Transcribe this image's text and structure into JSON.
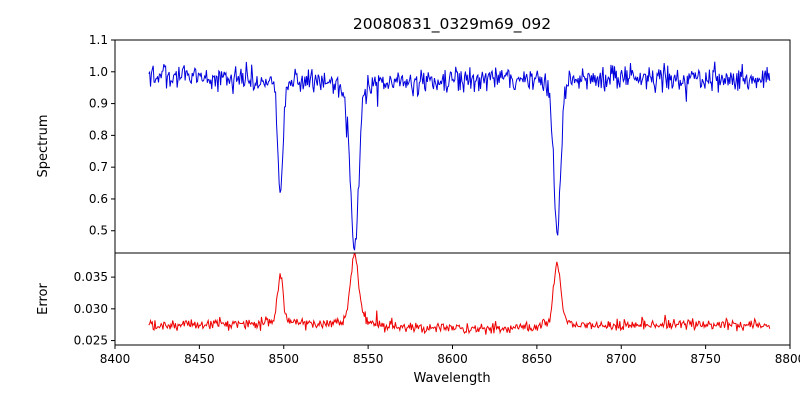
{
  "figure": {
    "background": "#ffffff",
    "axis_color": "#000000"
  },
  "chart_data": {
    "type": "line",
    "title": "20080831_0329m69_092",
    "xlabel": "Wavelength",
    "xlim": [
      8400,
      8800
    ],
    "xticks": [
      8400,
      8450,
      8500,
      8550,
      8600,
      8650,
      8700,
      8750,
      8800
    ],
    "xtick_labels": [
      "8400",
      "8450",
      "8500",
      "8550",
      "8600",
      "8650",
      "8700",
      "8750",
      "8800"
    ],
    "grid": false,
    "legend": null,
    "data_x_start": 8420,
    "data_x_end": 8788,
    "panels": [
      {
        "name": "spectrum",
        "ylabel": "Spectrum",
        "color": "#0000dd",
        "ylim": [
          0.43,
          1.1
        ],
        "yticks": [
          0.5,
          0.6,
          0.7,
          0.8,
          0.9,
          1.0,
          1.1
        ],
        "ytick_labels": [
          "0.5",
          "0.6",
          "0.7",
          "0.8",
          "0.9",
          "1.0",
          "1.1"
        ],
        "continuum_level": 0.98,
        "noise_sd": 0.019,
        "absorption_lines": [
          {
            "center": 8498,
            "min_value": 0.63,
            "sigma": 1.6
          },
          {
            "center": 8542,
            "min_value": 0.44,
            "sigma": 2.4
          },
          {
            "center": 8662,
            "min_value": 0.49,
            "sigma": 2.0
          }
        ]
      },
      {
        "name": "error",
        "ylabel": "Error",
        "color": "#ee0000",
        "ylim": [
          0.0243,
          0.0388
        ],
        "yticks": [
          0.025,
          0.03,
          0.035
        ],
        "ytick_labels": [
          "0.025",
          "0.030",
          "0.035"
        ],
        "baseline_level": 0.0272,
        "noise_sd": 0.00042,
        "peaks": [
          {
            "center": 8498,
            "peak_value": 0.035,
            "sigma": 1.6
          },
          {
            "center": 8542,
            "peak_value": 0.0385,
            "sigma": 2.4
          },
          {
            "center": 8662,
            "peak_value": 0.0375,
            "sigma": 2.0
          }
        ]
      }
    ]
  }
}
